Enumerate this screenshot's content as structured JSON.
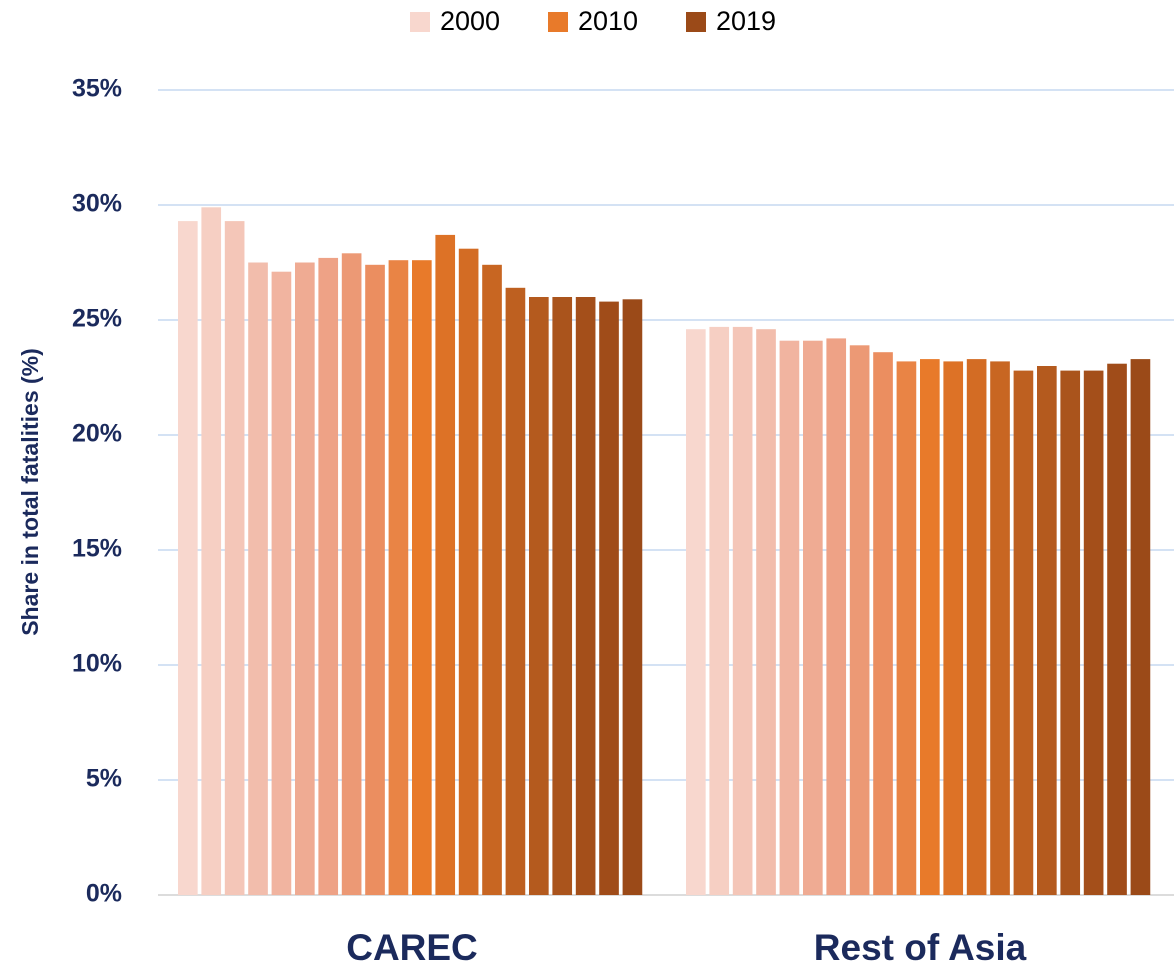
{
  "chart_data": {
    "type": "bar",
    "y_label": "Share in total fatalities (%)",
    "categories": [
      "CAREC",
      "Rest of Asia"
    ],
    "ylim": [
      0,
      35
    ],
    "yticks": [
      {
        "value": 0,
        "label": "0%"
      },
      {
        "value": 5,
        "label": "5%"
      },
      {
        "value": 10,
        "label": "10%"
      },
      {
        "value": 15,
        "label": "15%"
      },
      {
        "value": 20,
        "label": "20%"
      },
      {
        "value": 25,
        "label": "25%"
      },
      {
        "value": 30,
        "label": "30%"
      },
      {
        "value": 35,
        "label": "35%"
      }
    ],
    "grid": true,
    "legend": "top",
    "series": [
      {
        "name": "2000",
        "color": "#f8d7ce",
        "values": [
          29.3,
          24.6
        ]
      },
      {
        "color": "#f6cfc3",
        "values": [
          29.9,
          24.7
        ]
      },
      {
        "color": "#f4c6b8",
        "values": [
          29.3,
          24.7
        ]
      },
      {
        "color": "#f2bdac",
        "values": [
          27.5,
          24.6
        ]
      },
      {
        "color": "#f1b4a0",
        "values": [
          27.1,
          24.1
        ]
      },
      {
        "color": "#efab93",
        "values": [
          27.5,
          24.1
        ]
      },
      {
        "color": "#eea286",
        "values": [
          27.7,
          24.2
        ]
      },
      {
        "color": "#ec9975",
        "values": [
          27.9,
          23.9
        ]
      },
      {
        "color": "#eb8e60",
        "values": [
          27.4,
          23.6
        ]
      },
      {
        "color": "#e98445",
        "values": [
          27.6,
          23.2
        ]
      },
      {
        "name": "2010",
        "color": "#e87a2a",
        "values": [
          27.6,
          23.3
        ]
      },
      {
        "color": "#dd7226",
        "values": [
          28.7,
          23.2
        ]
      },
      {
        "color": "#d36c24",
        "values": [
          28.1,
          23.3
        ]
      },
      {
        "color": "#c86622",
        "values": [
          27.4,
          23.2
        ]
      },
      {
        "color": "#be6020",
        "values": [
          26.4,
          22.8
        ]
      },
      {
        "color": "#b45a1e",
        "values": [
          26.0,
          23.0
        ]
      },
      {
        "color": "#aa541c",
        "values": [
          26.0,
          22.8
        ]
      },
      {
        "color": "#a44f1a",
        "values": [
          26.0,
          22.8
        ]
      },
      {
        "color": "#a04c19",
        "values": [
          25.8,
          23.1
        ]
      },
      {
        "name": "2019",
        "color": "#9b4a18",
        "values": [
          25.9,
          23.3
        ]
      }
    ]
  }
}
